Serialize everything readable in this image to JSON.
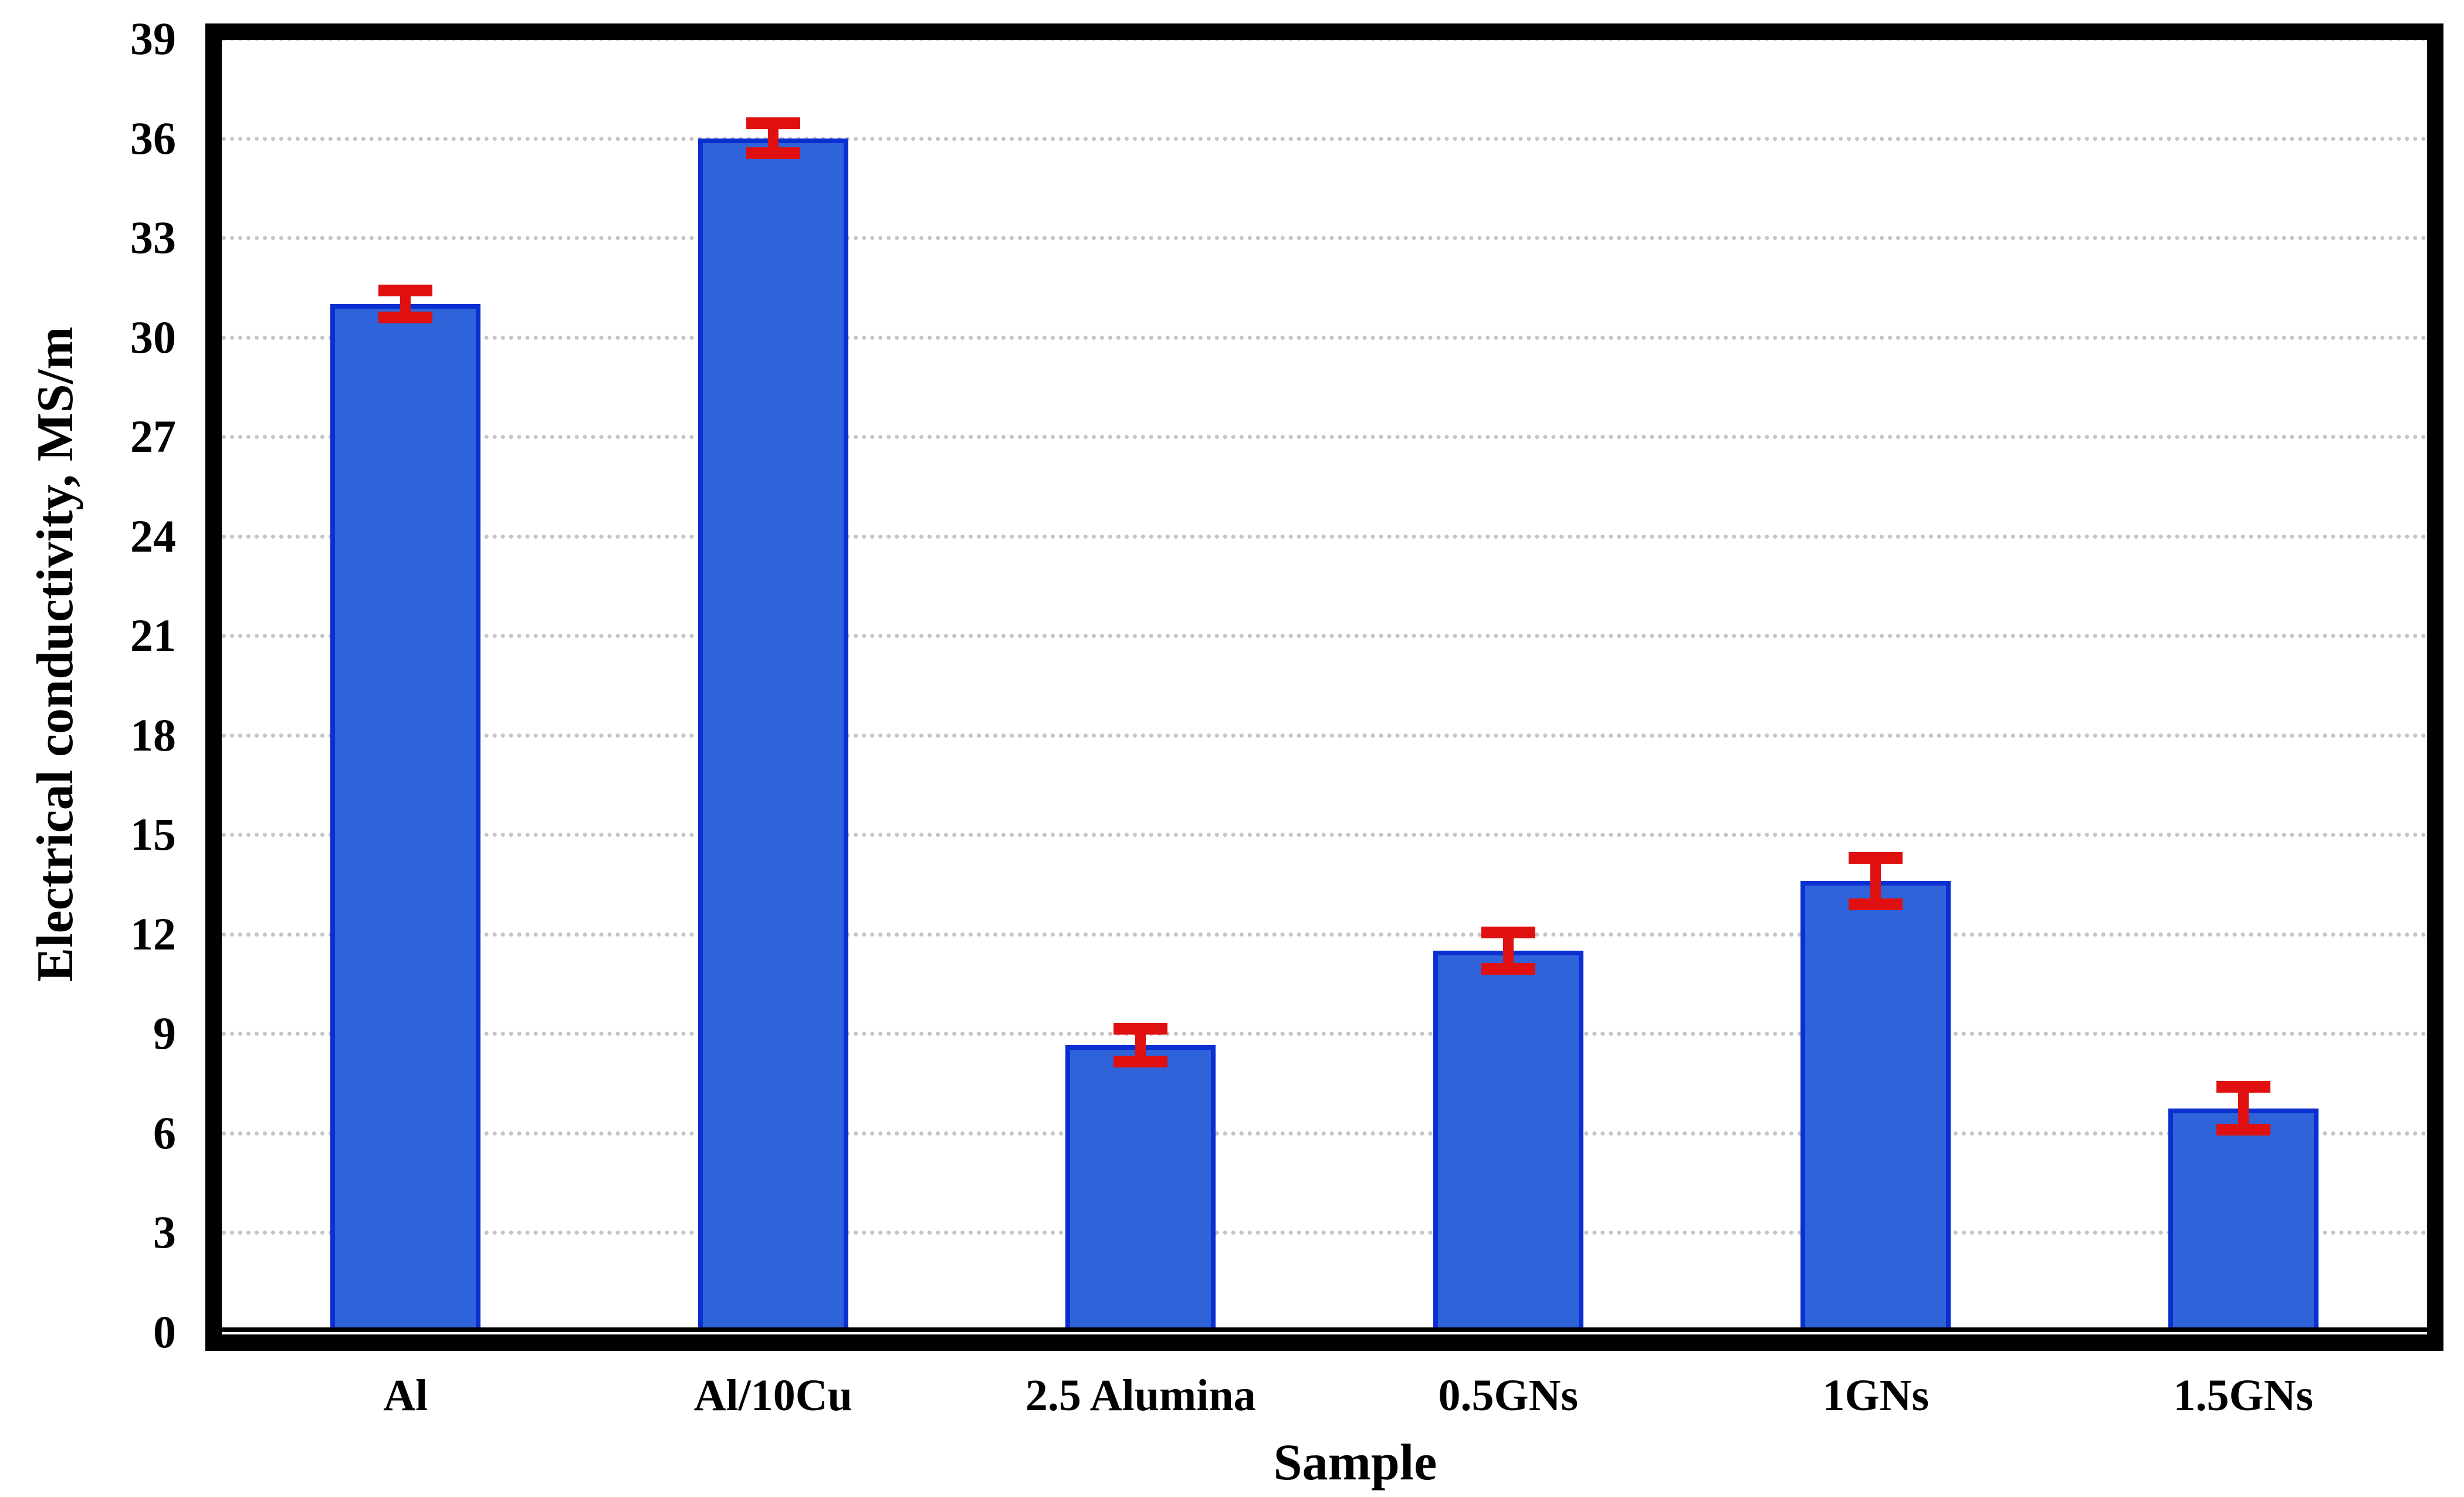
{
  "chart_data": {
    "type": "bar",
    "title": "",
    "xlabel": "Sample",
    "ylabel": "Electrical conductivity, MS/m",
    "categories": [
      "Al",
      "Al/10Cu",
      "2.5 Alumina",
      "0.5GNs",
      "1GNs",
      "1.5GNs"
    ],
    "series": [
      {
        "name": "Electrical conductivity",
        "values": [
          31.0,
          36.0,
          8.65,
          11.5,
          13.6,
          6.75
        ],
        "errors": [
          0.4,
          0.45,
          0.5,
          0.55,
          0.7,
          0.65
        ]
      }
    ],
    "ylim": [
      0,
      39
    ],
    "ytick_step": 3,
    "yticks": [
      0,
      3,
      6,
      9,
      12,
      15,
      18,
      21,
      24,
      27,
      30,
      33,
      36,
      39
    ],
    "grid": "horizontal dotted gridlines at every tick, none at 0",
    "legend_position": "none",
    "colors": {
      "bar_fill": "#2E63DA",
      "bar_border": "#0B2FD0",
      "error_bar": "#E01010",
      "gridline": "#C5C5C5",
      "frame": "#000000",
      "text": "#000000",
      "background": "#FFFFFF"
    }
  }
}
